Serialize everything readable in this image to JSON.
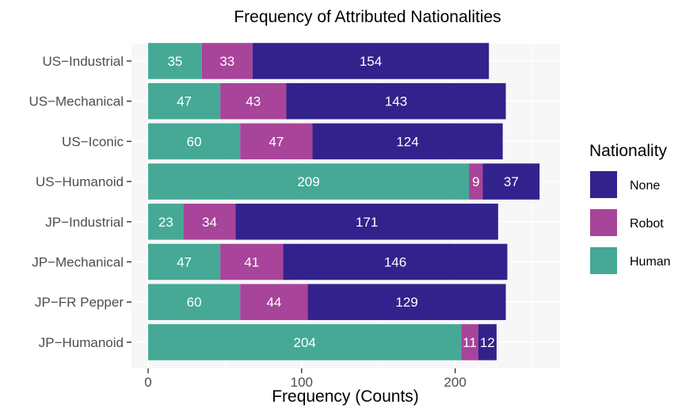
{
  "chart_data": {
    "type": "bar",
    "orientation": "horizontal",
    "stacked": true,
    "title": "Frequency of Attributed Nationalities",
    "xlabel": "Frequency (Counts)",
    "ylabel": "",
    "xlim": [
      0,
      265
    ],
    "xticks": [
      0,
      100,
      200
    ],
    "grid": true,
    "legend_position": "right",
    "legend_title": "Nationality",
    "categories": [
      "US−Industrial",
      "US−Mechanical",
      "US−Iconic",
      "US−Humanoid",
      "JP−Industrial",
      "JP−Mechanical",
      "JP−FR Pepper",
      "JP−Humanoid"
    ],
    "series": [
      {
        "name": "Human",
        "color": "#45a996",
        "values": [
          35,
          47,
          60,
          209,
          23,
          47,
          60,
          204
        ]
      },
      {
        "name": "Robot",
        "color": "#a8449a",
        "values": [
          33,
          43,
          47,
          9,
          34,
          41,
          44,
          11
        ]
      },
      {
        "name": "None",
        "color": "#33228b",
        "values": [
          154,
          143,
          124,
          37,
          171,
          146,
          129,
          12
        ]
      }
    ],
    "legend_order": [
      "None",
      "Robot",
      "Human"
    ],
    "panel_background": "#f7f7f7",
    "gridline_color": "#ffffff"
  }
}
